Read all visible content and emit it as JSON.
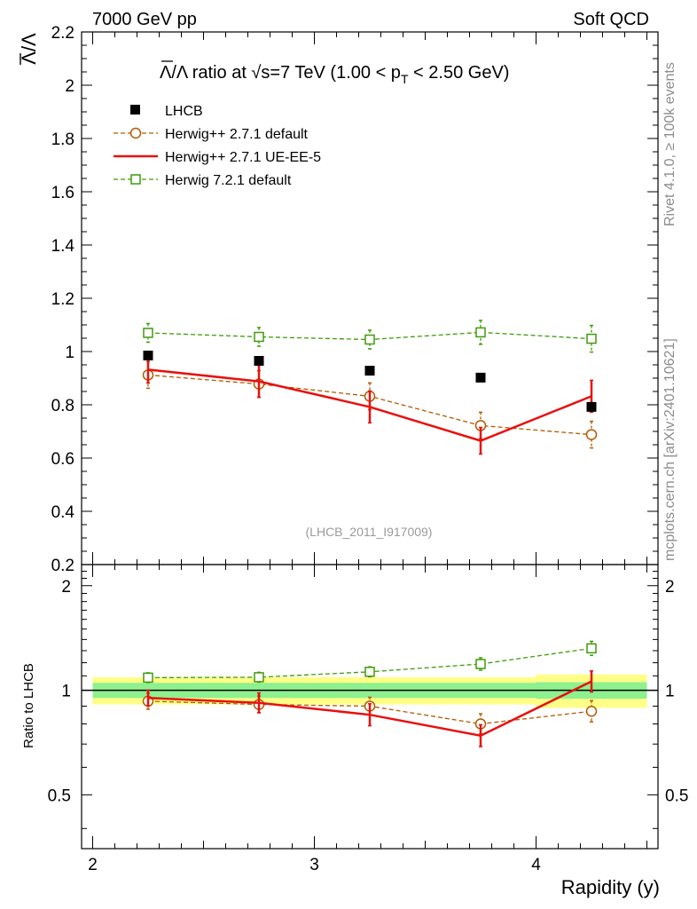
{
  "header": {
    "left": "7000 GeV pp",
    "right": "Soft QCD"
  },
  "side_labels": {
    "top": "Rivet 4.1.0, ≥ 100k events",
    "bottom": "mcplots.cern.ch [arXiv:2401.10621]"
  },
  "chart_data": {
    "type": "line",
    "title_prefix": "Λ/Λ ratio at √s=7 TeV (1.00 < p",
    "title_sub": "T",
    "title_suffix": " < 2.50 GeV)",
    "ylabel": "Λ/Λ",
    "xlabel": "Rapidity (y)",
    "ratio_ylabel": "Ratio to LHCB",
    "watermark": "(LHCB_2011_I917009)",
    "xlim": [
      1.95,
      4.55
    ],
    "ylim": [
      0.2,
      2.2
    ],
    "ratio_ylim": [
      0.35,
      2.3
    ],
    "x_ticks": [
      2,
      3,
      4
    ],
    "x_tick_labels": [
      "2",
      "3",
      "4"
    ],
    "y_ticks": [
      0.2,
      0.4,
      0.6,
      0.8,
      1,
      1.2,
      1.4,
      1.6,
      1.8,
      2,
      2.2
    ],
    "y_tick_labels": [
      "0.2",
      "0.4",
      "0.6",
      "0.8",
      "1",
      "1.2",
      "1.4",
      "1.6",
      "1.8",
      "2",
      "2.2"
    ],
    "ratio_ticks": [
      0.5,
      1,
      2
    ],
    "ratio_tick_labels": [
      "0.5",
      "1",
      "2"
    ],
    "x": [
      2.25,
      2.75,
      3.25,
      3.75,
      4.25
    ],
    "bins": [
      [
        2.0,
        2.5
      ],
      [
        2.5,
        3.0
      ],
      [
        3.0,
        3.5
      ],
      [
        3.5,
        4.0
      ],
      [
        4.0,
        4.5
      ]
    ],
    "series": [
      {
        "name": "LHCB",
        "style": "data",
        "color": "#000000",
        "values": [
          0.985,
          0.965,
          0.928,
          0.902,
          0.792
        ],
        "band_inner": [
          0.05,
          0.05,
          0.05,
          0.05,
          0.055
        ],
        "band_outer": [
          0.09,
          0.09,
          0.09,
          0.09,
          0.11
        ]
      },
      {
        "name": "Herwig++ 2.7.1 default",
        "style": "dashed-circle",
        "color": "#b35900",
        "values": [
          0.912,
          0.878,
          0.832,
          0.722,
          0.688
        ],
        "errors": [
          0.05,
          0.05,
          0.05,
          0.05,
          0.05
        ],
        "ratio": [
          0.93,
          0.91,
          0.9,
          0.8,
          0.87
        ]
      },
      {
        "name": "Herwig++ 2.7.1 UE-EE-5",
        "style": "solid",
        "color": "#e8100f",
        "values": [
          0.932,
          0.888,
          0.792,
          0.665,
          0.832
        ],
        "errors": [
          0.05,
          0.06,
          0.06,
          0.05,
          0.06
        ],
        "ratio": [
          0.95,
          0.92,
          0.85,
          0.74,
          1.06
        ]
      },
      {
        "name": "Herwig 7.2.1 default",
        "style": "dashed-square",
        "color": "#3f9b0b",
        "values": [
          1.07,
          1.055,
          1.045,
          1.072,
          1.048
        ],
        "errors": [
          0.035,
          0.035,
          0.035,
          0.045,
          0.05
        ],
        "ratio": [
          1.087,
          1.09,
          1.13,
          1.19,
          1.32
        ]
      }
    ]
  }
}
